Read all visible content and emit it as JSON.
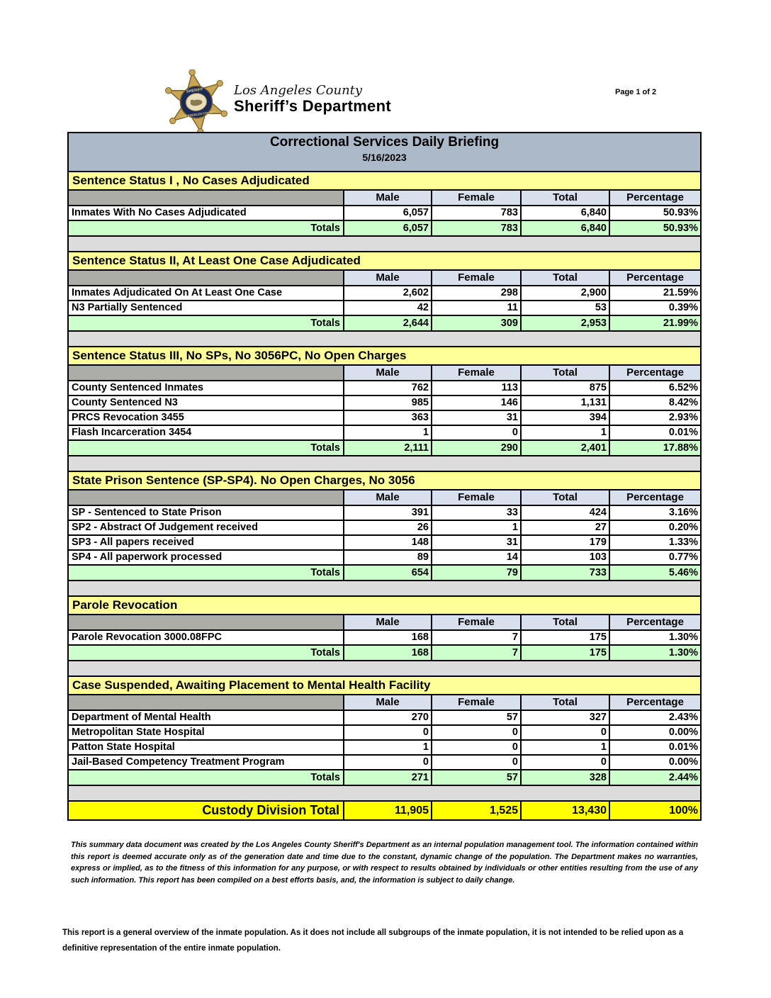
{
  "page": {
    "number_label": "Page 1 of 2"
  },
  "logo": {
    "badge_icon": "sheriff-star-badge",
    "line1": "Los Angeles County",
    "line2": "Sheriff’s Department"
  },
  "title": {
    "heading": "Correctional Services Daily Briefing",
    "date": "5/16/2023"
  },
  "columns": [
    "Male",
    "Female",
    "Total",
    "Percentage"
  ],
  "sections": [
    {
      "header": "Sentence Status I , No Cases Adjudicated",
      "rows": [
        {
          "label": "Inmates With No Cases Adjudicated",
          "male": "6,057",
          "female": "783",
          "total": "6,840",
          "percentage": "50.93%"
        }
      ],
      "totals": {
        "label": "Totals",
        "male": "6,057",
        "female": "783",
        "total": "6,840",
        "percentage": "50.93%"
      }
    },
    {
      "header": "Sentence Status II, At Least One Case Adjudicated",
      "rows": [
        {
          "label": "Inmates Adjudicated On At Least One Case",
          "male": "2,602",
          "female": "298",
          "total": "2,900",
          "percentage": "21.59%"
        },
        {
          "label": "N3 Partially Sentenced",
          "male": "42",
          "female": "11",
          "total": "53",
          "percentage": "0.39%"
        }
      ],
      "totals": {
        "label": "Totals",
        "male": "2,644",
        "female": "309",
        "total": "2,953",
        "percentage": "21.99%"
      }
    },
    {
      "header": "Sentence Status III, No SPs, No 3056PC, No Open Charges",
      "rows": [
        {
          "label": "County Sentenced Inmates",
          "male": "762",
          "female": "113",
          "total": "875",
          "percentage": "6.52%"
        },
        {
          "label": "County Sentenced N3",
          "male": "985",
          "female": "146",
          "total": "1,131",
          "percentage": "8.42%"
        },
        {
          "label": "PRCS Revocation 3455",
          "male": "363",
          "female": "31",
          "total": "394",
          "percentage": "2.93%"
        },
        {
          "label": "Flash Incarceration 3454",
          "male": "1",
          "female": "0",
          "total": "1",
          "percentage": "0.01%"
        }
      ],
      "totals": {
        "label": "Totals",
        "male": "2,111",
        "female": "290",
        "total": "2,401",
        "percentage": "17.88%"
      }
    },
    {
      "header": "State Prison Sentence (SP-SP4). No Open Charges, No 3056",
      "rows": [
        {
          "label": "SP - Sentenced to State Prison",
          "male": "391",
          "female": "33",
          "total": "424",
          "percentage": "3.16%"
        },
        {
          "label": "SP2 - Abstract Of Judgement received",
          "male": "26",
          "female": "1",
          "total": "27",
          "percentage": "0.20%"
        },
        {
          "label": "SP3 - All papers received",
          "male": "148",
          "female": "31",
          "total": "179",
          "percentage": "1.33%"
        },
        {
          "label": "SP4 - All paperwork processed",
          "male": "89",
          "female": "14",
          "total": "103",
          "percentage": "0.77%"
        }
      ],
      "totals": {
        "label": "Totals",
        "male": "654",
        "female": "79",
        "total": "733",
        "percentage": "5.46%"
      }
    },
    {
      "header": "Parole Revocation",
      "rows": [
        {
          "label": "Parole Revocation 3000.08FPC",
          "male": "168",
          "female": "7",
          "total": "175",
          "percentage": "1.30%"
        }
      ],
      "totals": {
        "label": "Totals",
        "male": "168",
        "female": "7",
        "total": "175",
        "percentage": "1.30%"
      }
    },
    {
      "header": "Case Suspended, Awaiting Placement to Mental Health Facility",
      "rows": [
        {
          "label": "Department of Mental Health",
          "male": "270",
          "female": "57",
          "total": "327",
          "percentage": "2.43%"
        },
        {
          "label": "Metropolitan State Hospital",
          "male": "0",
          "female": "0",
          "total": "0",
          "percentage": "0.00%"
        },
        {
          "label": "Patton State Hospital",
          "male": "1",
          "female": "0",
          "total": "1",
          "percentage": "0.01%"
        },
        {
          "label": "Jail-Based Competency Treatment Program",
          "male": "0",
          "female": "0",
          "total": "0",
          "percentage": "0.00%"
        }
      ],
      "totals": {
        "label": "Totals",
        "male": "271",
        "female": "57",
        "total": "328",
        "percentage": "2.44%"
      }
    }
  ],
  "grand_total": {
    "label": "Custody Division Total",
    "male": "11,905",
    "female": "1,525",
    "total": "13,430",
    "percentage": "100%"
  },
  "footnotes": {
    "disclaimer": "This summary data document was created by the Los Angeles County Sheriff's Department as an internal population management tool.  The information contained within this report is deemed accurate only as of the generation date and time due to the constant, dynamic change of the population.  The Department makes no warranties, express or implied, as to the fitness of this information for any purpose, or with respect to results obtained by individuals or other entities resulting from the use of any such information.  This report has been compiled on a best efforts basis, and, the information is subject to daily change.",
    "overview_note": "This report is a general overview of the inmate population.  As it does not include all subgroups of the inmate population, it is not intended to be relied upon as a definitive representation of the entire inmate population."
  },
  "colors": {
    "title_bar": "#ACB9C9",
    "section_header": "#FFFF99",
    "column_header": "#D8DFED",
    "header_corner": "#ADADA8",
    "totals_row": "#CCFFCC",
    "grand_total_row": "#FFFF00",
    "spacer_row": "#DCDCDC",
    "badge_gold": "#C9A558",
    "badge_navy": "#1B2A55"
  }
}
